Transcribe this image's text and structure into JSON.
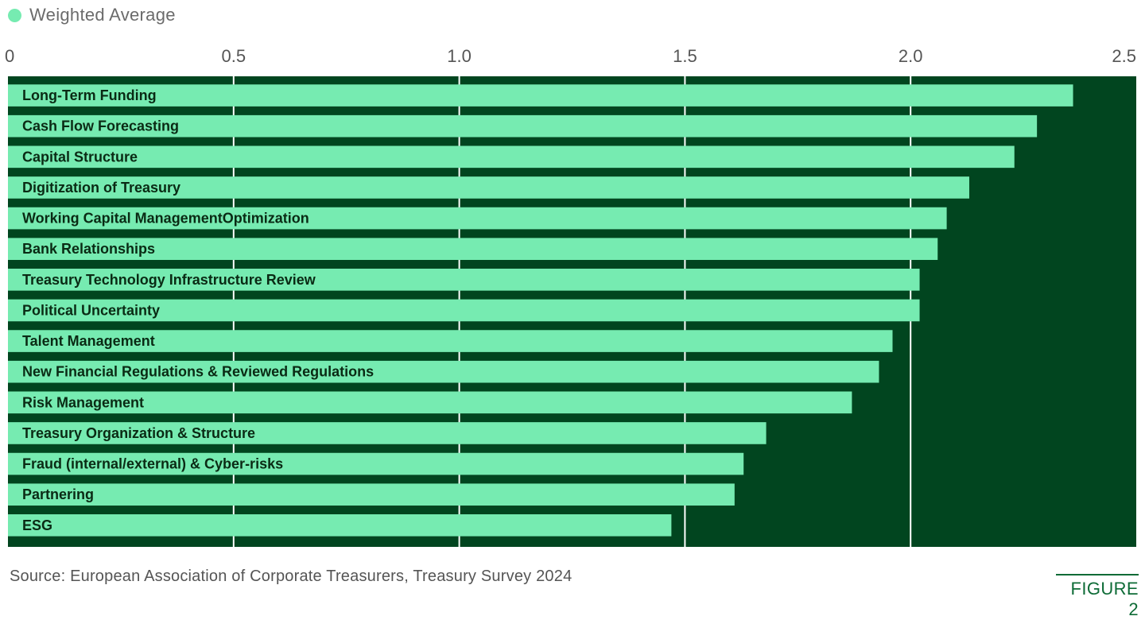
{
  "legend": {
    "label": "Weighted Average",
    "color": "#76ebb1"
  },
  "chart_data": {
    "type": "bar",
    "orientation": "horizontal",
    "title": "",
    "xlabel": "",
    "ylabel": "",
    "xlim": [
      0,
      2.5
    ],
    "ticks": [
      {
        "value": 0,
        "label": "0"
      },
      {
        "value": 0.5,
        "label": "0.5"
      },
      {
        "value": 1.0,
        "label": "1.0"
      },
      {
        "value": 1.5,
        "label": "1.5"
      },
      {
        "value": 2.0,
        "label": "2.0"
      },
      {
        "value": 2.5,
        "label": "2.5"
      }
    ],
    "grid": true,
    "legend_placement": "top-left",
    "categories": [
      "Long-Term Funding",
      "Cash Flow Forecasting",
      "Capital Structure",
      "Digitization of Treasury",
      "Working Capital ManagementOptimization",
      "Bank Relationships",
      "Treasury Technology Infrastructure Review",
      "Political Uncertainty",
      "Talent Management",
      "New Financial Regulations & Reviewed Regulations",
      "Risk Management",
      "Treasury Organization & Structure",
      "Fraud (internal/external) & Cyber-risks",
      "Partnering",
      "ESG"
    ],
    "series": [
      {
        "name": "Weighted Average",
        "values": [
          2.36,
          2.28,
          2.23,
          2.13,
          2.08,
          2.06,
          2.02,
          2.02,
          1.96,
          1.93,
          1.87,
          1.68,
          1.63,
          1.61,
          1.47
        ]
      }
    ],
    "colors": {
      "bar": "#76ebb1",
      "background": "#01451f",
      "grid": "#ffffff"
    }
  },
  "footer": {
    "source": "Source: European Association of Corporate Treasurers, Treasury Survey 2024",
    "figure_label": "FIGURE 2"
  }
}
